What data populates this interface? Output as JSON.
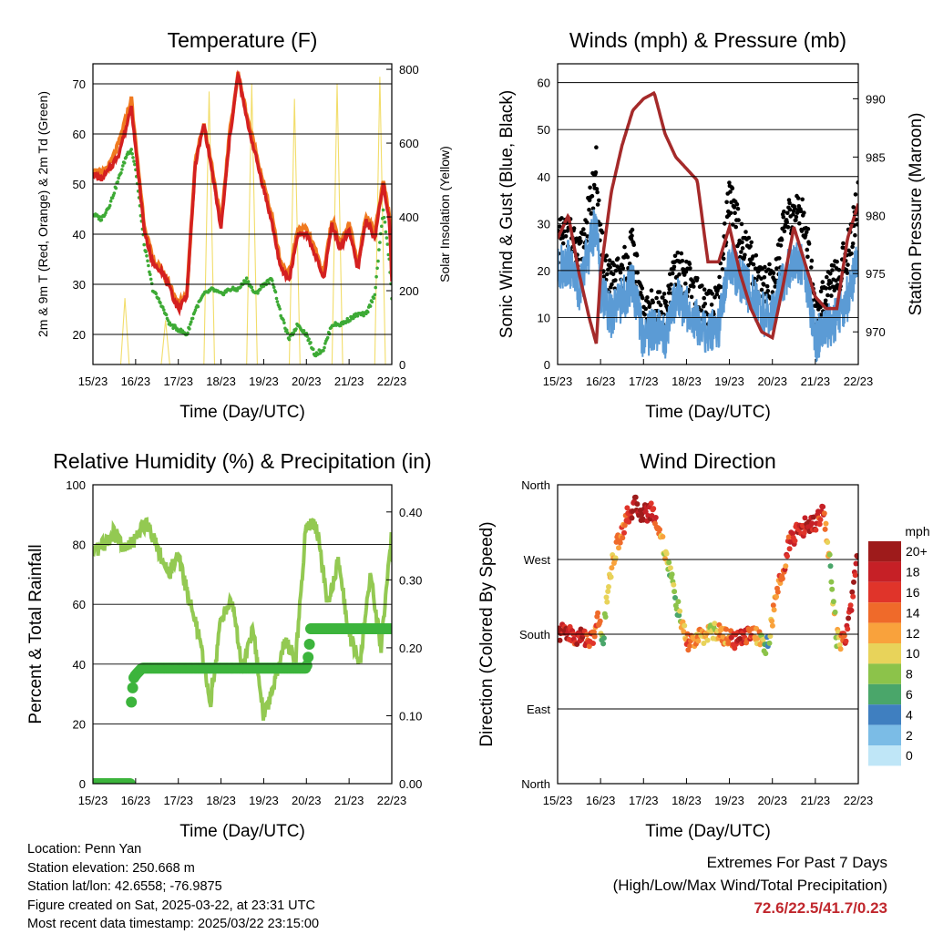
{
  "info": {
    "location": "Location: Penn Yan",
    "elevation": "Station elevation: 250.668 m",
    "latlon": "Station lat/lon: 42.6558; -76.9875",
    "created": "Figure created on Sat, 2025-03-22, at 23:31 UTC",
    "recent": "Most recent data timestamp: 2025/03/22 23:15:00"
  },
  "extremes": {
    "title": "Extremes For Past 7 Days",
    "subtitle": "(High/Low/Max Wind/Total Precipitation)",
    "values": "72.6/22.5/41.7/0.23"
  },
  "colors": {
    "t2m": "#d42020",
    "t9m": "#f07a20",
    "td": "#3daa35",
    "solar": "#f2dd6a",
    "wind": "#5b9bd5",
    "gust": "#000000",
    "pressure": "#a52a2a",
    "rh": "#93c952",
    "precip": "#3cb43c"
  },
  "chart_data": [
    {
      "type": "line",
      "title": "Temperature (F)",
      "xlabel": "Time (Day/UTC)",
      "ylabel": "2m & 9m T (Red, Orange) & 2m Td (Green)",
      "y2label": "Solar Insolation (Yellow)",
      "x_ticks": [
        "15/23",
        "16/23",
        "17/23",
        "18/23",
        "19/23",
        "20/23",
        "21/23",
        "22/23"
      ],
      "ylim": [
        14,
        74
      ],
      "y_ticks": [
        20,
        30,
        40,
        50,
        60,
        70
      ],
      "y2lim": [
        0,
        815
      ],
      "y2_ticks": [
        0,
        200,
        400,
        600,
        800
      ],
      "x": [
        0,
        0.2,
        0.4,
        0.6,
        0.8,
        0.9,
        1.0,
        1.2,
        1.4,
        1.6,
        1.8,
        2.0,
        2.2,
        2.4,
        2.6,
        2.8,
        3.0,
        3.2,
        3.4,
        3.6,
        3.8,
        4.0,
        4.2,
        4.4,
        4.6,
        4.8,
        5.0,
        5.2,
        5.4,
        5.6,
        5.8,
        6.0,
        6.2,
        6.4,
        6.6,
        6.8,
        6.95,
        7.0
      ],
      "series": [
        {
          "name": "2m T",
          "axis": "left",
          "values": [
            52,
            51,
            53,
            56,
            62,
            66,
            57,
            41,
            34,
            33,
            29,
            25,
            28,
            54,
            62,
            52,
            41,
            59,
            72,
            63,
            56,
            49,
            42,
            33,
            31,
            40,
            40,
            36,
            31,
            42,
            37,
            41,
            33,
            43,
            39,
            50,
            42,
            31
          ]
        },
        {
          "name": "9m T",
          "axis": "left",
          "values": [
            53,
            52,
            54,
            58,
            64,
            67,
            58,
            42,
            35,
            33,
            30,
            26,
            28,
            55,
            62,
            53,
            42,
            60,
            72,
            64,
            57,
            50,
            43,
            34,
            32,
            41,
            41,
            37,
            32,
            43,
            38,
            42,
            34,
            44,
            40,
            51,
            43,
            32
          ]
        },
        {
          "name": "2m Td",
          "axis": "left",
          "values": [
            44,
            43,
            46,
            51,
            56,
            57,
            53,
            38,
            29,
            26,
            22,
            21,
            20,
            25,
            28,
            29,
            28,
            29,
            29,
            31,
            28,
            30,
            31,
            24,
            19,
            22,
            20,
            16,
            17,
            22,
            22,
            23,
            24,
            24,
            28,
            45,
            34,
            27
          ]
        },
        {
          "name": "Solar",
          "axis": "right",
          "x": [
            0.65,
            0.75,
            0.85,
            1.6,
            1.7,
            1.8,
            2.6,
            2.72,
            2.85,
            3.6,
            3.72,
            3.85,
            4.6,
            4.72,
            4.85,
            5.6,
            5.72,
            5.85,
            6.6,
            6.72,
            6.85
          ],
          "values": [
            0,
            180,
            0,
            0,
            120,
            0,
            0,
            740,
            0,
            0,
            760,
            0,
            0,
            720,
            0,
            0,
            760,
            0,
            0,
            780,
            0
          ]
        }
      ]
    },
    {
      "type": "line",
      "title": "Winds (mph) & Pressure (mb)",
      "xlabel": "Time (Day/UTC)",
      "ylabel": "Sonic Wind & Gust (Blue, Black)",
      "y2label": "Station Pressure (Maroon)",
      "x_ticks": [
        "15/23",
        "16/23",
        "17/23",
        "18/23",
        "19/23",
        "20/23",
        "21/23",
        "22/23"
      ],
      "ylim": [
        0,
        64
      ],
      "y_ticks": [
        0,
        10,
        20,
        30,
        40,
        50,
        60
      ],
      "y2lim": [
        967.2,
        993
      ],
      "y2_ticks": [
        970,
        975,
        980,
        985,
        990
      ],
      "x": [
        0,
        0.25,
        0.5,
        0.75,
        0.9,
        1.0,
        1.25,
        1.5,
        1.75,
        2.0,
        2.25,
        2.5,
        2.75,
        3.0,
        3.25,
        3.5,
        3.75,
        4.0,
        4.25,
        4.5,
        4.75,
        5.0,
        5.25,
        5.5,
        5.75,
        6.0,
        6.25,
        6.5,
        6.75,
        7.0
      ],
      "series": [
        {
          "name": "Sonic Wind",
          "axis": "left",
          "values": [
            20,
            22,
            16,
            25,
            30,
            16,
            10,
            14,
            17,
            5,
            8,
            6,
            14,
            12,
            9,
            6,
            8,
            22,
            18,
            15,
            11,
            10,
            18,
            22,
            21,
            5,
            8,
            10,
            14,
            22
          ]
        },
        {
          "name": "Gust",
          "axis": "left",
          "values": [
            26,
            28,
            22,
            33,
            42,
            25,
            17,
            20,
            25,
            10,
            12,
            11,
            20,
            19,
            14,
            11,
            13,
            37,
            27,
            22,
            18,
            17,
            28,
            33,
            31,
            12,
            16,
            18,
            24,
            35
          ]
        },
        {
          "name": "Station Pressure",
          "axis": "right",
          "values": [
            978,
            980,
            975,
            971,
            969,
            975,
            982,
            986,
            989,
            990,
            990.5,
            987,
            985,
            984,
            983,
            976,
            976,
            979,
            975,
            972,
            970,
            969.5,
            974,
            979,
            976,
            973,
            972,
            972,
            978,
            981
          ]
        }
      ]
    },
    {
      "type": "line",
      "title": "Relative Humidity (%) & Precipitation (in)",
      "xlabel": "Time (Day/UTC)",
      "ylabel": "Percent & Total Rainfall",
      "x_ticks": [
        "15/23",
        "16/23",
        "17/23",
        "18/23",
        "19/23",
        "20/23",
        "21/23",
        "22/23"
      ],
      "ylim": [
        0,
        100
      ],
      "y_ticks": [
        0,
        20,
        40,
        60,
        80,
        100
      ],
      "y2lim": [
        0,
        0.44
      ],
      "y2_ticks": [
        "0.00",
        "0.10",
        "0.20",
        "0.30",
        "0.40"
      ],
      "x": [
        0,
        0.25,
        0.5,
        0.75,
        1.0,
        1.25,
        1.5,
        1.75,
        2.0,
        2.25,
        2.5,
        2.75,
        3.0,
        3.25,
        3.5,
        3.75,
        4.0,
        4.25,
        4.5,
        4.75,
        5.0,
        5.25,
        5.5,
        5.75,
        6.0,
        6.25,
        6.5,
        6.75,
        7.0
      ],
      "series": [
        {
          "name": "Relative Humidity",
          "axis": "left",
          "values": [
            76,
            80,
            84,
            78,
            82,
            88,
            80,
            70,
            76,
            62,
            48,
            27,
            55,
            62,
            38,
            52,
            22,
            34,
            48,
            42,
            88,
            85,
            60,
            75,
            50,
            40,
            70,
            45,
            84
          ]
        },
        {
          "name": "Total Precipitation",
          "axis": "right",
          "x": [
            0,
            0.9,
            0.9,
            0.95,
            1.0,
            1.15,
            1.4,
            2.0,
            3.0,
            4.0,
            4.5,
            5.0,
            5.05,
            5.1,
            5.5,
            6.0,
            7.0
          ],
          "values": [
            0,
            0,
            0.12,
            0.155,
            0.16,
            0.17,
            0.17,
            0.17,
            0.17,
            0.17,
            0.17,
            0.17,
            0.19,
            0.228,
            0.228,
            0.228,
            0.228
          ]
        }
      ]
    },
    {
      "type": "scatter",
      "title": "Wind Direction",
      "xlabel": "Time (Day/UTC)",
      "ylabel": "Direction (Colored By Speed)",
      "x_ticks": [
        "15/23",
        "16/23",
        "17/23",
        "18/23",
        "19/23",
        "20/23",
        "21/23",
        "22/23"
      ],
      "y_ticks": [
        "North",
        "East",
        "South",
        "West",
        "North"
      ],
      "ylim": [
        0,
        360
      ],
      "legend": {
        "title": "mph",
        "labels": [
          "20+",
          "18",
          "16",
          "14",
          "12",
          "10",
          "8",
          "6",
          "4",
          "2",
          "0"
        ],
        "colors": [
          "#9e1b1b",
          "#c62026",
          "#e0342a",
          "#ef6a2a",
          "#f9a23c",
          "#e8d35a",
          "#8cc34a",
          "#4aa66a",
          "#3f7fc0",
          "#7bbce6",
          "#bfe6f7"
        ]
      },
      "x": [
        0,
        0.2,
        0.4,
        0.6,
        0.8,
        0.95,
        1.05,
        1.2,
        1.4,
        1.6,
        1.8,
        2.0,
        2.2,
        2.4,
        2.6,
        2.8,
        3.0,
        3.3,
        3.6,
        3.9,
        4.2,
        4.5,
        4.75,
        4.9,
        5.0,
        5.2,
        5.4,
        5.6,
        5.8,
        6.0,
        6.2,
        6.35,
        6.5,
        6.7,
        6.9,
        7.0
      ],
      "values": [
        180,
        185,
        175,
        178,
        172,
        200,
        170,
        250,
        290,
        320,
        335,
        325,
        330,
        300,
        260,
        210,
        170,
        175,
        185,
        178,
        172,
        185,
        170,
        165,
        200,
        250,
        290,
        305,
        310,
        315,
        330,
        260,
        175,
        170,
        240,
        280
      ],
      "speeds": [
        19,
        18,
        17,
        18,
        16,
        14,
        6,
        10,
        13,
        16,
        19,
        20,
        18,
        12,
        8,
        6,
        14,
        12,
        10,
        13,
        18,
        16,
        10,
        4,
        12,
        14,
        16,
        18,
        19,
        17,
        16,
        8,
        10,
        16,
        19,
        20
      ]
    }
  ]
}
